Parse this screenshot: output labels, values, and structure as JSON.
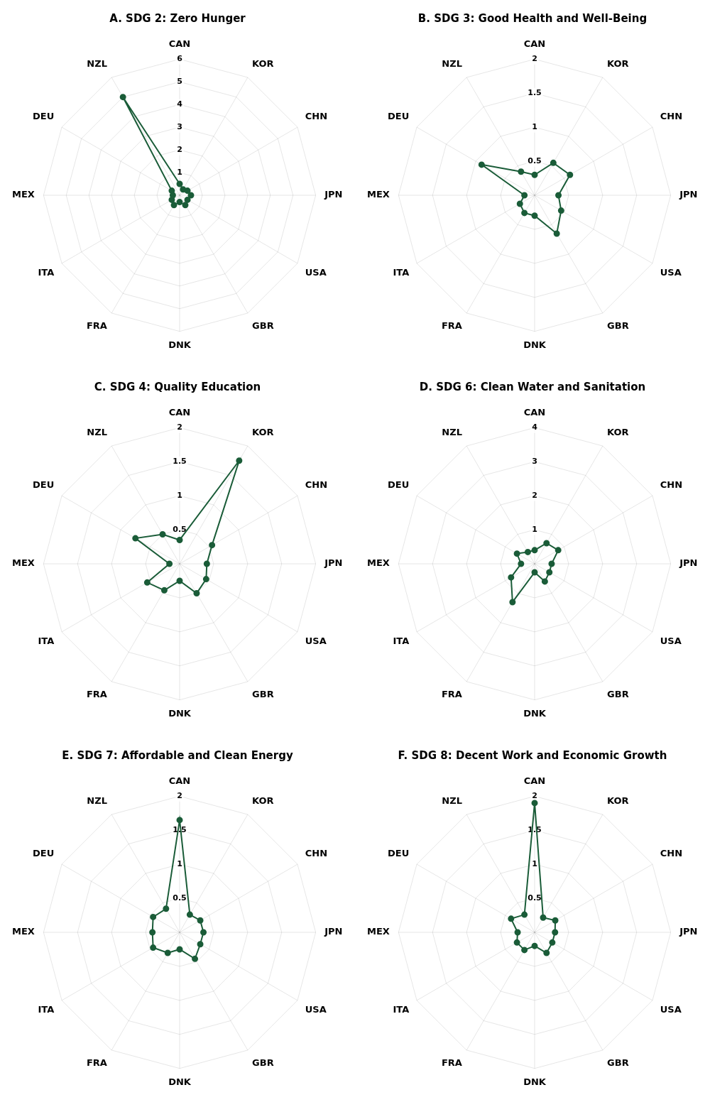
{
  "chart_data": [
    {
      "type": "radar",
      "title": "A. SDG 2: Zero Hunger",
      "categories": [
        "CAN",
        "KOR",
        "CHN",
        "JPN",
        "USA",
        "GBR",
        "DNK",
        "FRA",
        "ITA",
        "MEX",
        "DEU",
        "NZL"
      ],
      "values": [
        0.5,
        0.3,
        0.4,
        0.5,
        0.4,
        0.5,
        0.3,
        0.5,
        0.4,
        0.3,
        0.4,
        5.0
      ],
      "color": "#1a5c38",
      "ylim": [
        0,
        6
      ],
      "yticks": [
        1,
        2,
        3,
        4,
        5,
        6
      ],
      "grid": true
    },
    {
      "type": "radar",
      "title": "B. SDG 3: Good Health and Well-Being",
      "categories": [
        "CAN",
        "KOR",
        "CHN",
        "JPN",
        "USA",
        "GBR",
        "DNK",
        "FRA",
        "ITA",
        "MEX",
        "DEU",
        "NZL"
      ],
      "values": [
        0.3,
        0.55,
        0.6,
        0.35,
        0.45,
        0.65,
        0.3,
        0.3,
        0.25,
        0.15,
        0.9,
        0.4
      ],
      "color": "#1a5c38",
      "ylim": [
        0,
        2
      ],
      "yticks": [
        0.5,
        1,
        1.5,
        2
      ],
      "grid": true
    },
    {
      "type": "radar",
      "title": "C. SDG 4: Quality Education",
      "categories": [
        "CAN",
        "KOR",
        "CHN",
        "JPN",
        "USA",
        "GBR",
        "DNK",
        "FRA",
        "ITA",
        "MEX",
        "DEU",
        "NZL"
      ],
      "values": [
        0.35,
        1.75,
        0.55,
        0.4,
        0.45,
        0.5,
        0.25,
        0.45,
        0.55,
        0.15,
        0.75,
        0.5
      ],
      "color": "#1a5c38",
      "ylim": [
        0,
        2
      ],
      "yticks": [
        0.5,
        1,
        1.5,
        2
      ],
      "grid": true
    },
    {
      "type": "radar",
      "title": "D. SDG 6: Clean Water and Sanitation",
      "categories": [
        "CAN",
        "KOR",
        "CHN",
        "JPN",
        "USA",
        "GBR",
        "DNK",
        "FRA",
        "ITA",
        "MEX",
        "DEU",
        "NZL"
      ],
      "values": [
        0.4,
        0.7,
        0.8,
        0.5,
        0.5,
        0.6,
        0.25,
        1.3,
        0.8,
        0.4,
        0.6,
        0.4
      ],
      "color": "#1a5c38",
      "ylim": [
        0,
        4
      ],
      "yticks": [
        1,
        2,
        3,
        4
      ],
      "grid": true
    },
    {
      "type": "radar",
      "title": "E. SDG 7: Affordable and Clean Energy",
      "categories": [
        "CAN",
        "KOR",
        "CHN",
        "JPN",
        "USA",
        "GBR",
        "DNK",
        "FRA",
        "ITA",
        "MEX",
        "DEU",
        "NZL"
      ],
      "values": [
        1.65,
        0.3,
        0.35,
        0.35,
        0.35,
        0.45,
        0.25,
        0.35,
        0.45,
        0.4,
        0.45,
        0.4
      ],
      "color": "#1a5c38",
      "ylim": [
        0,
        2
      ],
      "yticks": [
        0.5,
        1,
        1.5,
        2
      ],
      "grid": true
    },
    {
      "type": "radar",
      "title": "F. SDG 8: Decent Work and Economic Growth",
      "categories": [
        "CAN",
        "KOR",
        "CHN",
        "JPN",
        "USA",
        "GBR",
        "DNK",
        "FRA",
        "ITA",
        "MEX",
        "DEU",
        "NZL"
      ],
      "values": [
        1.9,
        0.25,
        0.35,
        0.3,
        0.3,
        0.35,
        0.2,
        0.3,
        0.3,
        0.25,
        0.4,
        0.3
      ],
      "color": "#1a5c38",
      "ylim": [
        0,
        2
      ],
      "yticks": [
        0.5,
        1,
        1.5,
        2
      ],
      "grid": true
    }
  ]
}
